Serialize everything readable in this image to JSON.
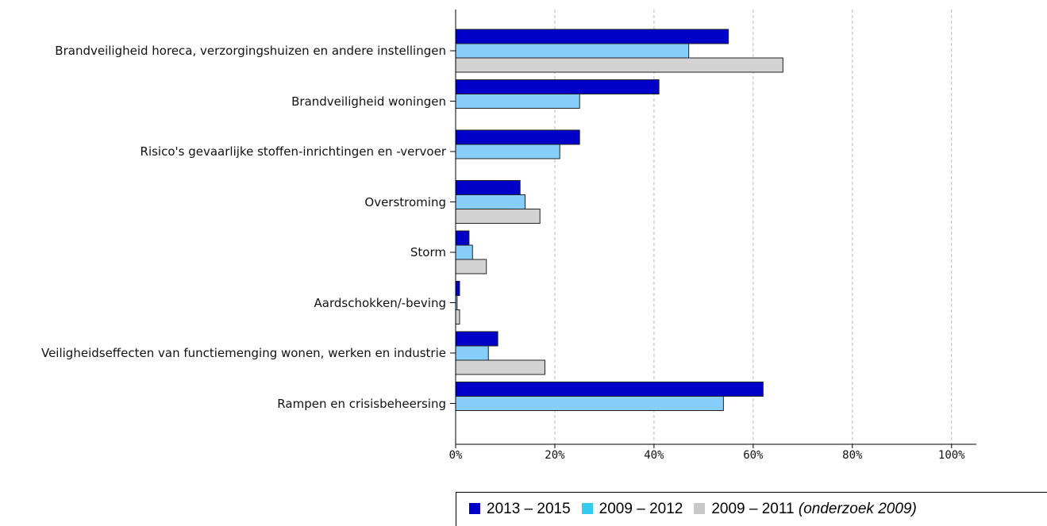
{
  "chart_data": {
    "type": "barh",
    "categories": [
      "Brandveiligheid horeca, verzorgingshuizen en   andere instellingen",
      "Brandveiligheid woningen",
      "Risico's gevaarlijke stoffen-inrichtingen en -vervoer",
      "Overstroming",
      "Storm",
      "Aardschokken/-beving",
      "Veiligheidseffecten van functiemenging wonen, werken en industrie",
      "Rampen en crisisbeheersing"
    ],
    "series": [
      {
        "name": "2013 – 2015",
        "color": "#0000c8",
        "values": [
          55,
          41,
          25,
          13,
          2.7,
          0.8,
          8.5,
          62
        ]
      },
      {
        "name": "2009 – 2012",
        "color": "#87cefa",
        "legend_color": "#33ccf0",
        "values": [
          47,
          25,
          21,
          14,
          3.4,
          0.3,
          6.6,
          54
        ]
      },
      {
        "name": "2009 – 2011",
        "name_note": "(onderzoek 2009)",
        "color": "#d3d3d3",
        "legend_color": "#c8c8c8",
        "values": [
          66,
          null,
          null,
          17,
          6.2,
          0.8,
          18,
          null
        ]
      }
    ],
    "xlim": [
      0,
      105
    ],
    "xticks": [
      {
        "value": 0,
        "label": "0%"
      },
      {
        "value": 20,
        "label": "20%"
      },
      {
        "value": 40,
        "label": "40%"
      },
      {
        "value": 60,
        "label": "60%"
      },
      {
        "value": 80,
        "label": "80%"
      },
      {
        "value": 100,
        "label": "100%"
      }
    ],
    "grid": true
  }
}
